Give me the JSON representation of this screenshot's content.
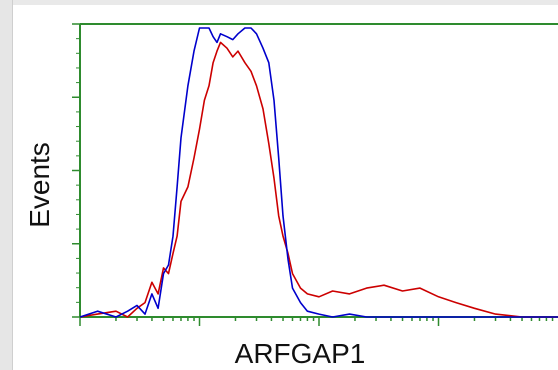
{
  "chart_data": {
    "type": "line",
    "title": "",
    "xlabel": "ARFGAP1",
    "ylabel": "Events",
    "x_scale": "log",
    "xlim": [
      10,
      100000
    ],
    "ylim": [
      0,
      100
    ],
    "grid": false,
    "axis_color": "#2e8b2e",
    "series": [
      {
        "color": "#0000cc",
        "x": [
          10,
          14,
          20,
          25,
          30,
          35,
          40,
          45,
          50,
          55,
          60,
          65,
          70,
          80,
          90,
          100,
          110,
          120,
          130,
          140,
          150,
          170,
          190,
          210,
          240,
          270,
          300,
          340,
          380,
          420,
          460,
          500,
          550,
          600,
          700,
          800,
          1000,
          1300,
          1800,
          2500,
          5000,
          10000,
          20000,
          50000,
          100000
        ],
        "y": [
          0,
          2,
          0,
          2,
          4,
          1,
          8,
          3,
          15,
          18,
          28,
          45,
          62,
          80,
          92,
          100,
          100,
          100,
          97,
          95,
          98,
          97,
          96,
          98,
          100,
          100,
          98,
          93,
          88,
          75,
          55,
          35,
          20,
          10,
          5,
          2,
          1,
          0,
          1,
          0,
          0,
          0,
          0,
          0,
          0
        ]
      },
      {
        "color": "#cc0000",
        "x": [
          10,
          14,
          20,
          25,
          30,
          35,
          40,
          45,
          50,
          55,
          60,
          65,
          70,
          80,
          90,
          100,
          110,
          120,
          130,
          140,
          150,
          170,
          190,
          210,
          240,
          270,
          300,
          340,
          380,
          420,
          460,
          500,
          550,
          600,
          700,
          800,
          1000,
          1300,
          1800,
          2500,
          3500,
          5000,
          7000,
          10000,
          14000,
          20000,
          30000,
          50000,
          100000
        ],
        "y": [
          0,
          1,
          2,
          0,
          3,
          5,
          12,
          8,
          17,
          15,
          22,
          28,
          40,
          45,
          55,
          65,
          75,
          80,
          88,
          92,
          95,
          93,
          90,
          92,
          88,
          85,
          80,
          72,
          60,
          48,
          35,
          28,
          22,
          15,
          10,
          8,
          7,
          9,
          8,
          10,
          11,
          9,
          10,
          7,
          5,
          3,
          1,
          0,
          0
        ]
      }
    ]
  }
}
